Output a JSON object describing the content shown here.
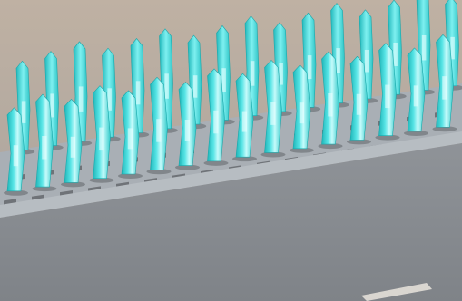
{
  "scene": {
    "subject": "connector-pin-array-3d-render",
    "pin_count_per_row": 16,
    "row_count": 2,
    "colors": {
      "background_top": "#b9ada1",
      "background_bottom": "#a9a39d",
      "housing_front": "#8a8e93",
      "housing_top": "#a7adb3",
      "slot": "#6d7176",
      "pin_dark": "#2ec7c9",
      "pin_mid": "#55e2e3",
      "pin_light": "#c9fbfb",
      "shadow": "#4f5559"
    }
  }
}
